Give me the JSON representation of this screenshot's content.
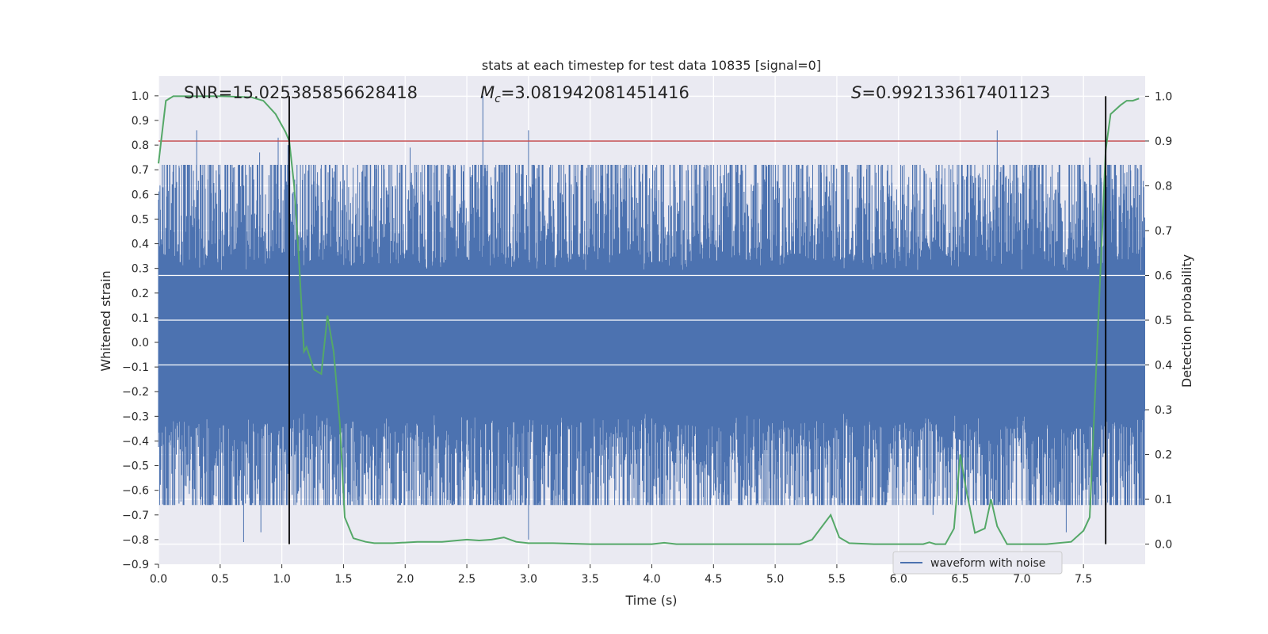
{
  "chart_data": {
    "type": "line",
    "title": "stats at each timestep for test data 10835 [signal=0]",
    "xlabel": "Time (s)",
    "ylabel_left": "Whitened strain",
    "ylabel_right": "Detection probability",
    "xlim": [
      0.0,
      8.0
    ],
    "ylim_left": [
      -0.9,
      1.08
    ],
    "ylim_right": [
      -0.045,
      1.045
    ],
    "x_ticks": [
      "0.0",
      "0.5",
      "1.0",
      "1.5",
      "2.0",
      "2.5",
      "3.0",
      "3.5",
      "4.0",
      "4.5",
      "5.0",
      "5.5",
      "6.0",
      "6.5",
      "7.0",
      "7.5"
    ],
    "y_ticks_left": [
      "1.0",
      "0.9",
      "0.8",
      "0.7",
      "0.6",
      "0.5",
      "0.4",
      "0.3",
      "0.2",
      "0.1",
      "0.0",
      "−0.1",
      "−0.2",
      "−0.3",
      "−0.4",
      "−0.5",
      "−0.6",
      "−0.7",
      "−0.8",
      "−0.9"
    ],
    "y_ticks_right": [
      "1.0",
      "0.9",
      "0.8",
      "0.7",
      "0.6",
      "0.5",
      "0.4",
      "0.3",
      "0.2",
      "0.1",
      "0.0"
    ],
    "grid": true,
    "legend_position": "lower-right",
    "annotations": {
      "snr": "SNR=15.025385856628418",
      "mc_symbol": "M",
      "mc_sub": "c",
      "mc_value": "=3.081942081451416",
      "s_symbol": "S",
      "s_value": "=0.992133617401123"
    },
    "threshold_probability": 0.9,
    "vertical_lines_x": [
      1.06,
      7.68
    ],
    "series": [
      {
        "name": "waveform with noise",
        "axis": "left",
        "color": "#4c72b0",
        "envelope": {
          "core_amplitude": 0.27,
          "typical_peak": 0.45
        },
        "notable_peaks": [
          {
            "x": 0.31,
            "y": 0.86
          },
          {
            "x": 0.82,
            "y": 0.77
          },
          {
            "x": 0.97,
            "y": 0.83
          },
          {
            "x": 1.05,
            "y": 0.8
          },
          {
            "x": 2.04,
            "y": 0.79
          },
          {
            "x": 2.63,
            "y": 1.0
          },
          {
            "x": 3.0,
            "y": 0.86
          },
          {
            "x": 6.8,
            "y": 0.86
          },
          {
            "x": 7.55,
            "y": 0.75
          },
          {
            "x": 3.0,
            "y": -0.8
          },
          {
            "x": 0.69,
            "y": -0.81
          },
          {
            "x": 0.83,
            "y": -0.77
          },
          {
            "x": 7.36,
            "y": -0.77
          },
          {
            "x": 6.28,
            "y": -0.7
          }
        ]
      },
      {
        "name": "",
        "axis": "right",
        "color": "#55a868",
        "x": [
          0.0,
          0.06,
          0.12,
          0.25,
          0.5,
          0.75,
          0.85,
          0.95,
          1.03,
          1.06,
          1.1,
          1.14,
          1.18,
          1.2,
          1.26,
          1.32,
          1.37,
          1.42,
          1.47,
          1.51,
          1.58,
          1.68,
          1.75,
          1.9,
          2.1,
          2.3,
          2.5,
          2.6,
          2.7,
          2.8,
          2.9,
          3.0,
          3.2,
          3.5,
          3.8,
          4.0,
          4.1,
          4.2,
          4.5,
          4.8,
          5.0,
          5.2,
          5.3,
          5.45,
          5.52,
          5.6,
          5.8,
          6.0,
          6.2,
          6.25,
          6.3,
          6.38,
          6.45,
          6.5,
          6.55,
          6.62,
          6.7,
          6.75,
          6.8,
          6.88,
          7.0,
          7.2,
          7.4,
          7.5,
          7.55,
          7.62,
          7.68,
          7.72,
          7.8,
          7.85,
          7.9,
          7.95
        ],
        "y": [
          0.85,
          0.99,
          1.0,
          1.0,
          1.0,
          0.998,
          0.99,
          0.96,
          0.92,
          0.9,
          0.8,
          0.63,
          0.43,
          0.44,
          0.39,
          0.38,
          0.51,
          0.43,
          0.27,
          0.06,
          0.013,
          0.005,
          0.002,
          0.002,
          0.005,
          0.005,
          0.01,
          0.008,
          0.01,
          0.015,
          0.005,
          0.002,
          0.002,
          0.0,
          0.0,
          0.0,
          0.003,
          0.0,
          0.0,
          0.0,
          0.0,
          0.0,
          0.01,
          0.065,
          0.015,
          0.002,
          0.0,
          0.0,
          0.0,
          0.004,
          0.0,
          0.0,
          0.035,
          0.2,
          0.12,
          0.025,
          0.035,
          0.1,
          0.04,
          0.0,
          0.0,
          0.0,
          0.005,
          0.03,
          0.06,
          0.5,
          0.88,
          0.96,
          0.98,
          0.99,
          0.99,
          0.995
        ]
      }
    ]
  }
}
